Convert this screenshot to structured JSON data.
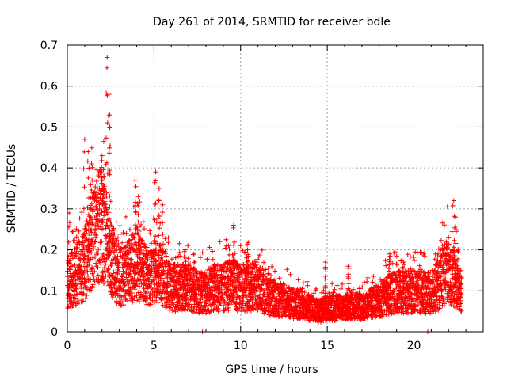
{
  "chart_data": {
    "type": "scatter",
    "title": "Day 261 of 2014, SRMTID for receiver bdle",
    "xlabel": "GPS time / hours",
    "ylabel": "SRMTID / TECUs",
    "xlim": [
      0,
      24
    ],
    "ylim": [
      0,
      0.7
    ],
    "xticks": [
      0,
      5,
      10,
      15,
      20
    ],
    "yticks": [
      0,
      0.1,
      0.2,
      0.3,
      0.4,
      0.5,
      0.6,
      0.7
    ],
    "xtick_labels": [
      "0",
      "5",
      "10",
      "15",
      "20"
    ],
    "ytick_labels": [
      "0",
      "0.1",
      "0.2",
      "0.3",
      "0.4",
      "0.5",
      "0.6",
      "0.7"
    ],
    "grid": true,
    "marker": "+",
    "color": "#ff0000",
    "series_name": "SRMTID",
    "baseline_profile": [
      [
        0.0,
        0.12
      ],
      [
        0.5,
        0.14
      ],
      [
        1.0,
        0.17
      ],
      [
        1.5,
        0.24
      ],
      [
        2.0,
        0.27
      ],
      [
        2.5,
        0.18
      ],
      [
        3.0,
        0.14
      ],
      [
        3.5,
        0.15
      ],
      [
        4.0,
        0.17
      ],
      [
        4.5,
        0.14
      ],
      [
        5.0,
        0.15
      ],
      [
        5.5,
        0.14
      ],
      [
        6.0,
        0.11
      ],
      [
        6.5,
        0.11
      ],
      [
        7.0,
        0.11
      ],
      [
        7.5,
        0.1
      ],
      [
        8.0,
        0.1
      ],
      [
        8.5,
        0.11
      ],
      [
        9.0,
        0.11
      ],
      [
        9.5,
        0.12
      ],
      [
        10.0,
        0.11
      ],
      [
        10.5,
        0.11
      ],
      [
        11.0,
        0.11
      ],
      [
        11.5,
        0.09
      ],
      [
        12.0,
        0.08
      ],
      [
        12.5,
        0.08
      ],
      [
        13.0,
        0.07
      ],
      [
        13.5,
        0.07
      ],
      [
        14.0,
        0.06
      ],
      [
        14.5,
        0.05
      ],
      [
        15.0,
        0.06
      ],
      [
        15.5,
        0.06
      ],
      [
        16.0,
        0.06
      ],
      [
        16.5,
        0.07
      ],
      [
        17.0,
        0.06
      ],
      [
        17.5,
        0.07
      ],
      [
        18.0,
        0.08
      ],
      [
        18.5,
        0.09
      ],
      [
        19.0,
        0.1
      ],
      [
        19.5,
        0.1
      ],
      [
        20.0,
        0.1
      ],
      [
        20.5,
        0.1
      ],
      [
        21.0,
        0.1
      ],
      [
        21.5,
        0.12
      ],
      [
        22.0,
        0.16
      ],
      [
        22.5,
        0.11
      ],
      [
        22.7,
        0.1
      ]
    ],
    "peaks": [
      {
        "x": 1.0,
        "top": 0.47
      },
      {
        "x": 1.2,
        "top": 0.44
      },
      {
        "x": 1.4,
        "top": 0.41
      },
      {
        "x": 1.7,
        "top": 0.34
      },
      {
        "x": 2.0,
        "top": 0.43
      },
      {
        "x": 2.1,
        "top": 0.38
      },
      {
        "x": 2.3,
        "top": 0.67
      },
      {
        "x": 2.4,
        "top": 0.58
      },
      {
        "x": 2.45,
        "top": 0.5
      },
      {
        "x": 3.9,
        "top": 0.37
      },
      {
        "x": 4.1,
        "top": 0.33
      },
      {
        "x": 5.1,
        "top": 0.39
      },
      {
        "x": 5.3,
        "top": 0.35
      },
      {
        "x": 5.5,
        "top": 0.31
      },
      {
        "x": 0.1,
        "top": 0.29
      },
      {
        "x": 9.6,
        "top": 0.26
      },
      {
        "x": 9.3,
        "top": 0.21
      },
      {
        "x": 10.4,
        "top": 0.2
      },
      {
        "x": 14.9,
        "top": 0.17
      },
      {
        "x": 16.2,
        "top": 0.16
      },
      {
        "x": 18.6,
        "top": 0.19
      },
      {
        "x": 19.4,
        "top": 0.17
      },
      {
        "x": 21.4,
        "top": 0.19
      },
      {
        "x": 22.3,
        "top": 0.32
      },
      {
        "x": 22.4,
        "top": 0.28
      },
      {
        "x": 6.8,
        "top": 0.2
      },
      {
        "x": 7.3,
        "top": 0.19
      }
    ],
    "outliers": [
      [
        7.8,
        0.0
      ],
      [
        20.8,
        0.0
      ]
    ],
    "x_end": 22.75,
    "sample_step_hours": 0.0125
  }
}
